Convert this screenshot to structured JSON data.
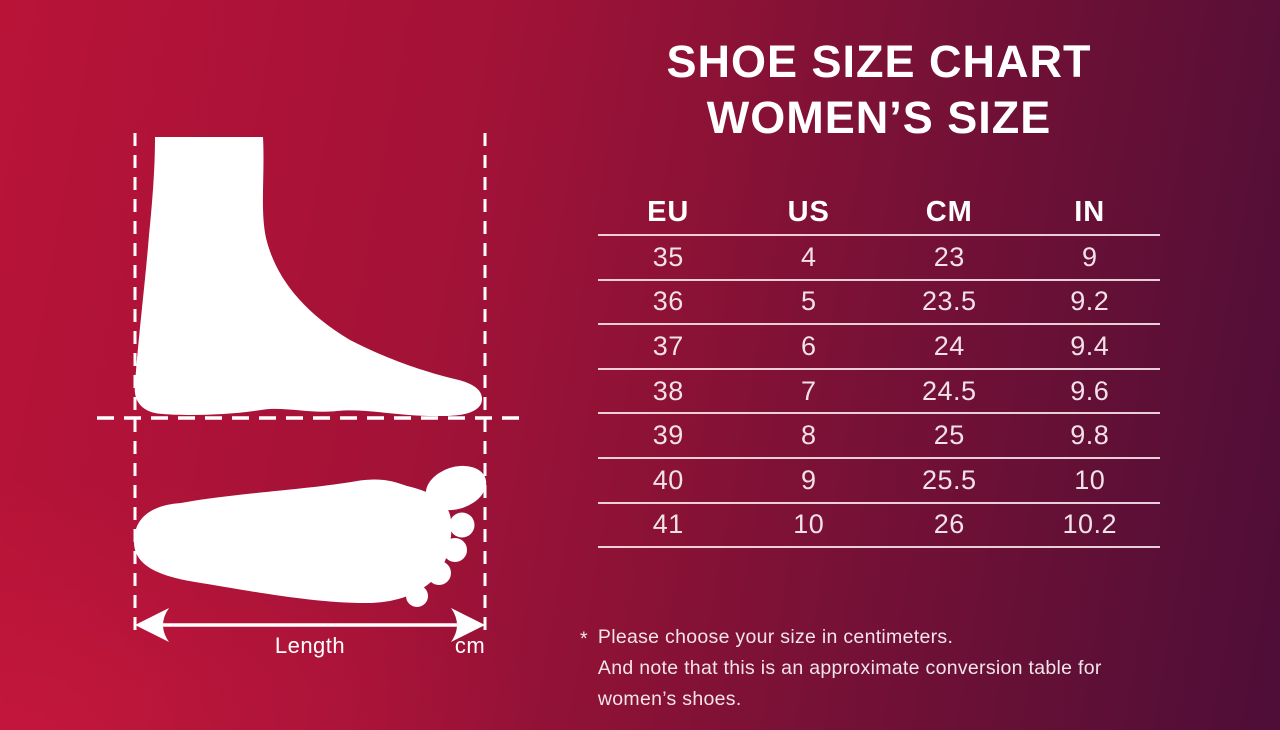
{
  "header": {
    "title_line1": "SHOE SIZE CHART",
    "title_line2": "WOMEN’S SIZE"
  },
  "table": {
    "columns": [
      "EU",
      "US",
      "CM",
      "IN"
    ],
    "rows": [
      [
        "35",
        "4",
        "23",
        "9"
      ],
      [
        "36",
        "5",
        "23.5",
        "9.2"
      ],
      [
        "37",
        "6",
        "24",
        "9.4"
      ],
      [
        "38",
        "7",
        "24.5",
        "9.6"
      ],
      [
        "39",
        "8",
        "25",
        "9.8"
      ],
      [
        "40",
        "9",
        "25.5",
        "10"
      ],
      [
        "41",
        "10",
        "26",
        "10.2"
      ]
    ]
  },
  "diagram": {
    "length_label": "Length",
    "unit_label": "cm"
  },
  "footnote": {
    "marker": "*",
    "line1": "Please choose your size in centimeters.",
    "line2": "And note that this is an approximate conversion table for women’s shoes."
  },
  "colors": {
    "background_left": "#b91338",
    "background_right": "#4d0e37",
    "title_text": "#ffffff",
    "table_text": "#f2e1e8",
    "divider": "#fff0f6"
  },
  "chart_data": {
    "type": "table",
    "title": "SHOE SIZE CHART — WOMEN’S SIZE",
    "columns": [
      "EU",
      "US",
      "CM",
      "IN"
    ],
    "rows": [
      [
        35,
        4,
        23,
        9
      ],
      [
        36,
        5,
        23.5,
        9.2
      ],
      [
        37,
        6,
        24,
        9.4
      ],
      [
        38,
        7,
        24.5,
        9.6
      ],
      [
        39,
        8,
        25,
        9.8
      ],
      [
        40,
        9,
        25.5,
        10
      ],
      [
        41,
        10,
        26,
        10.2
      ]
    ],
    "notes": [
      "Please choose your size in centimeters.",
      "And note that this is an approximate conversion table for women’s shoes."
    ]
  }
}
